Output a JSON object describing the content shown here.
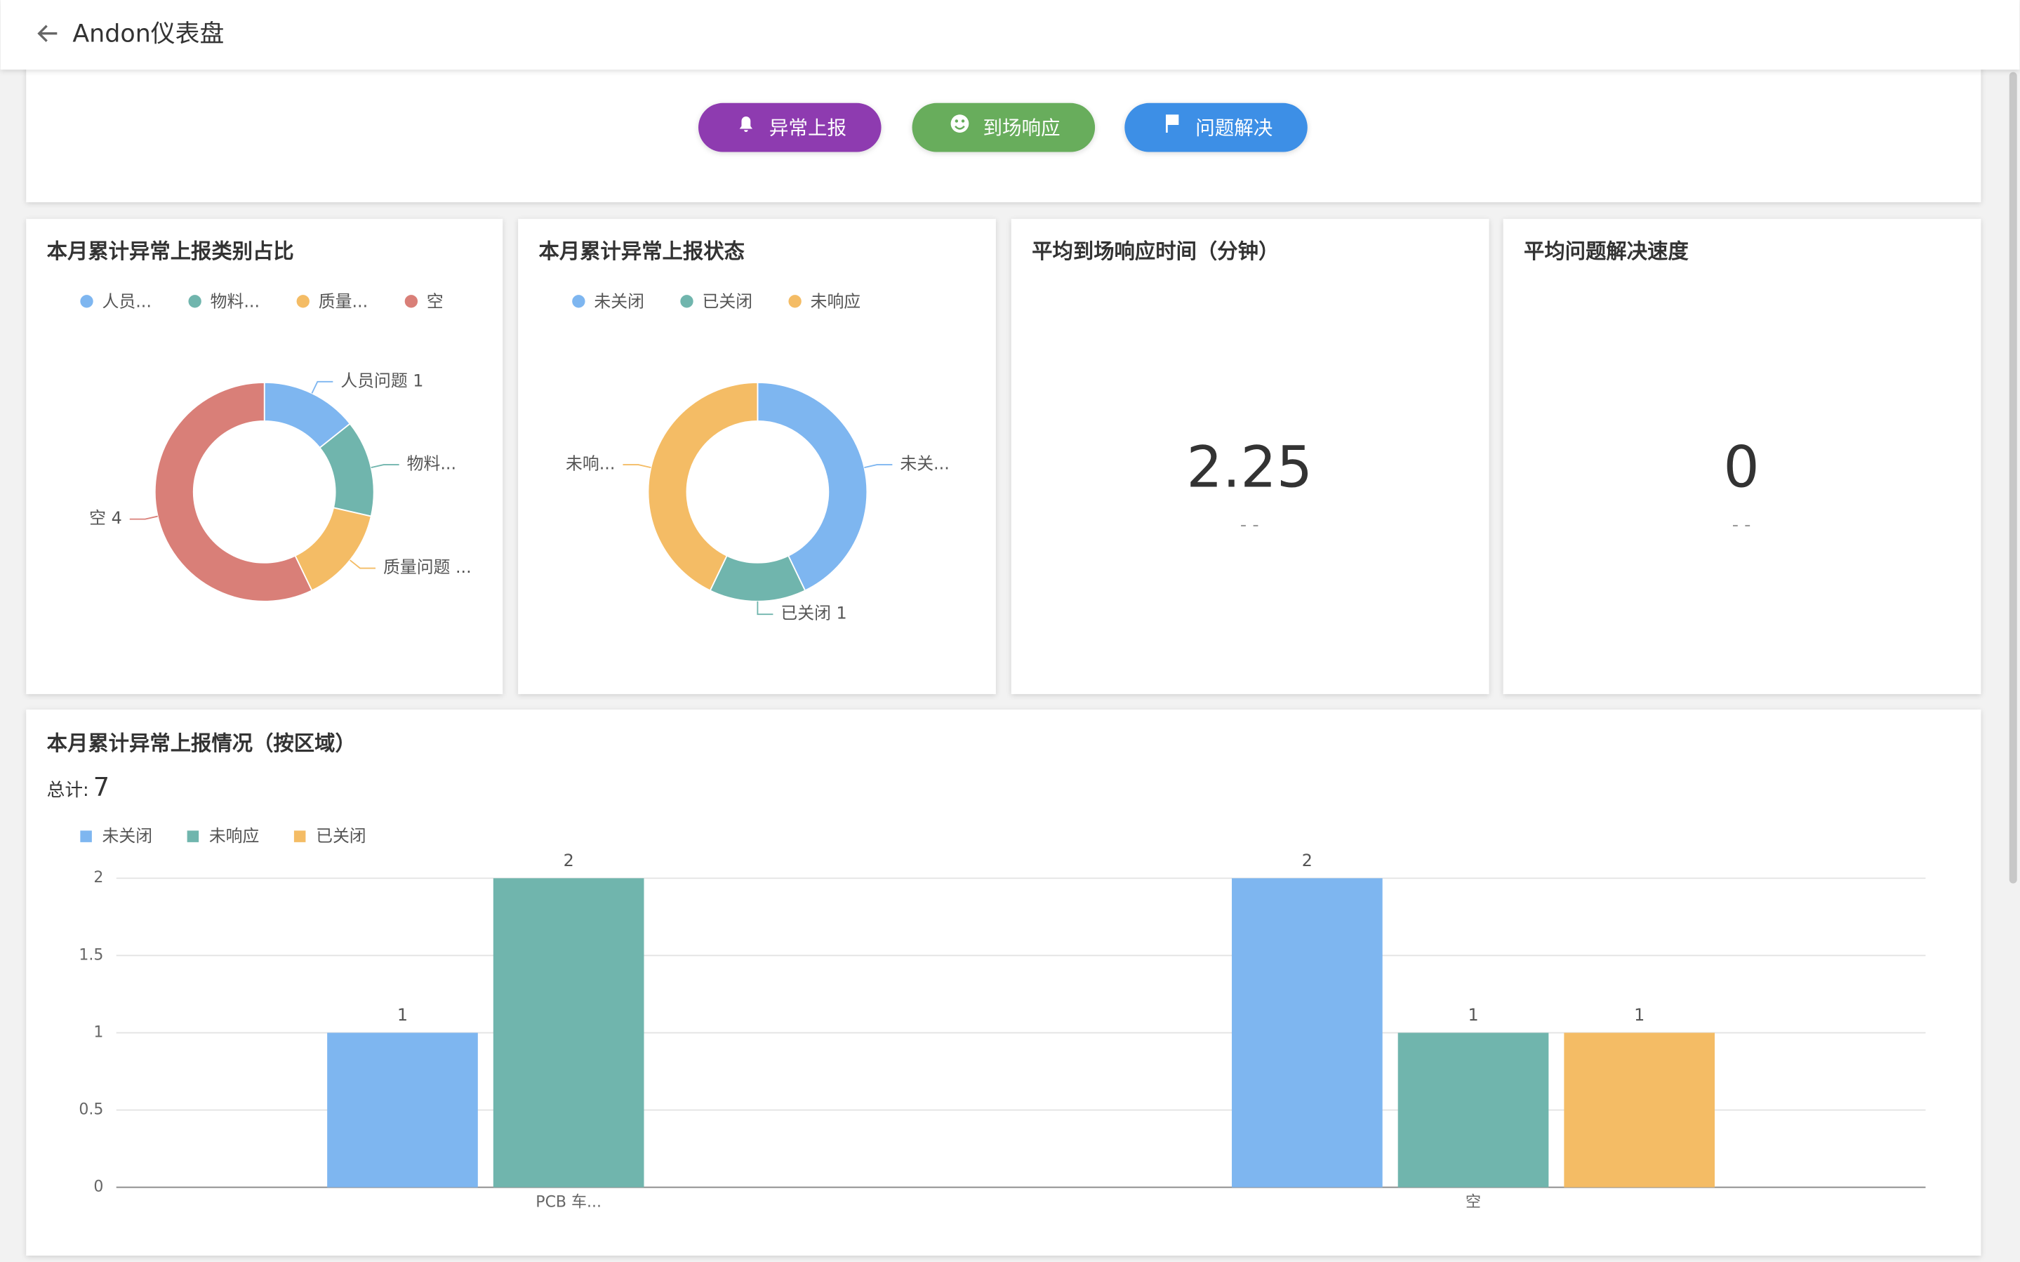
{
  "header": {
    "title": "Andon仪表盘"
  },
  "buttons": [
    {
      "label": "异常上报",
      "color": "#8e3bb0"
    },
    {
      "label": "到场响应",
      "color": "#67ad5b"
    },
    {
      "label": "问题解决",
      "color": "#3d8fe6"
    }
  ],
  "chart_data": [
    {
      "type": "pie",
      "title": "本月累计异常上报类别占比",
      "categories": [
        "人员...",
        "物料...",
        "质量...",
        "空"
      ],
      "values": [
        1,
        1,
        1,
        4
      ],
      "colors": [
        "#7eb6f0",
        "#70b5ad",
        "#f4bc65",
        "#d97f78"
      ],
      "slice_labels": [
        "人员问题  1",
        "物料...",
        "质量问题 ...",
        "空  4"
      ]
    },
    {
      "type": "pie",
      "title": "本月累计异常上报状态",
      "categories": [
        "未关闭",
        "已关闭",
        "未响应"
      ],
      "values": [
        3,
        1,
        3
      ],
      "colors": [
        "#7eb6f0",
        "#70b5ad",
        "#f4bc65"
      ],
      "slice_labels": [
        "未关...",
        "已关闭  1",
        "未响..."
      ]
    },
    {
      "type": "bar",
      "title": "本月累计异常上报情况（按区域）",
      "total_label": "总计:",
      "total": 7,
      "categories": [
        "PCB 车...",
        "空"
      ],
      "series": [
        {
          "name": "未关闭",
          "color": "#7eb6f0",
          "values": [
            1,
            2
          ]
        },
        {
          "name": "未响应",
          "color": "#70b5ad",
          "values": [
            2,
            1
          ]
        },
        {
          "name": "已关闭",
          "color": "#f4bc65",
          "values": [
            null,
            1
          ]
        }
      ],
      "ylim": [
        0,
        2
      ],
      "yticks": [
        0,
        0.5,
        1,
        1.5,
        2
      ],
      "grid": true
    }
  ],
  "stats": [
    {
      "title": "平均到场响应时间（分钟）",
      "value": 2.25,
      "sub": "- -"
    },
    {
      "title": "平均问题解决速度",
      "value": 0,
      "sub": "- -"
    }
  ]
}
